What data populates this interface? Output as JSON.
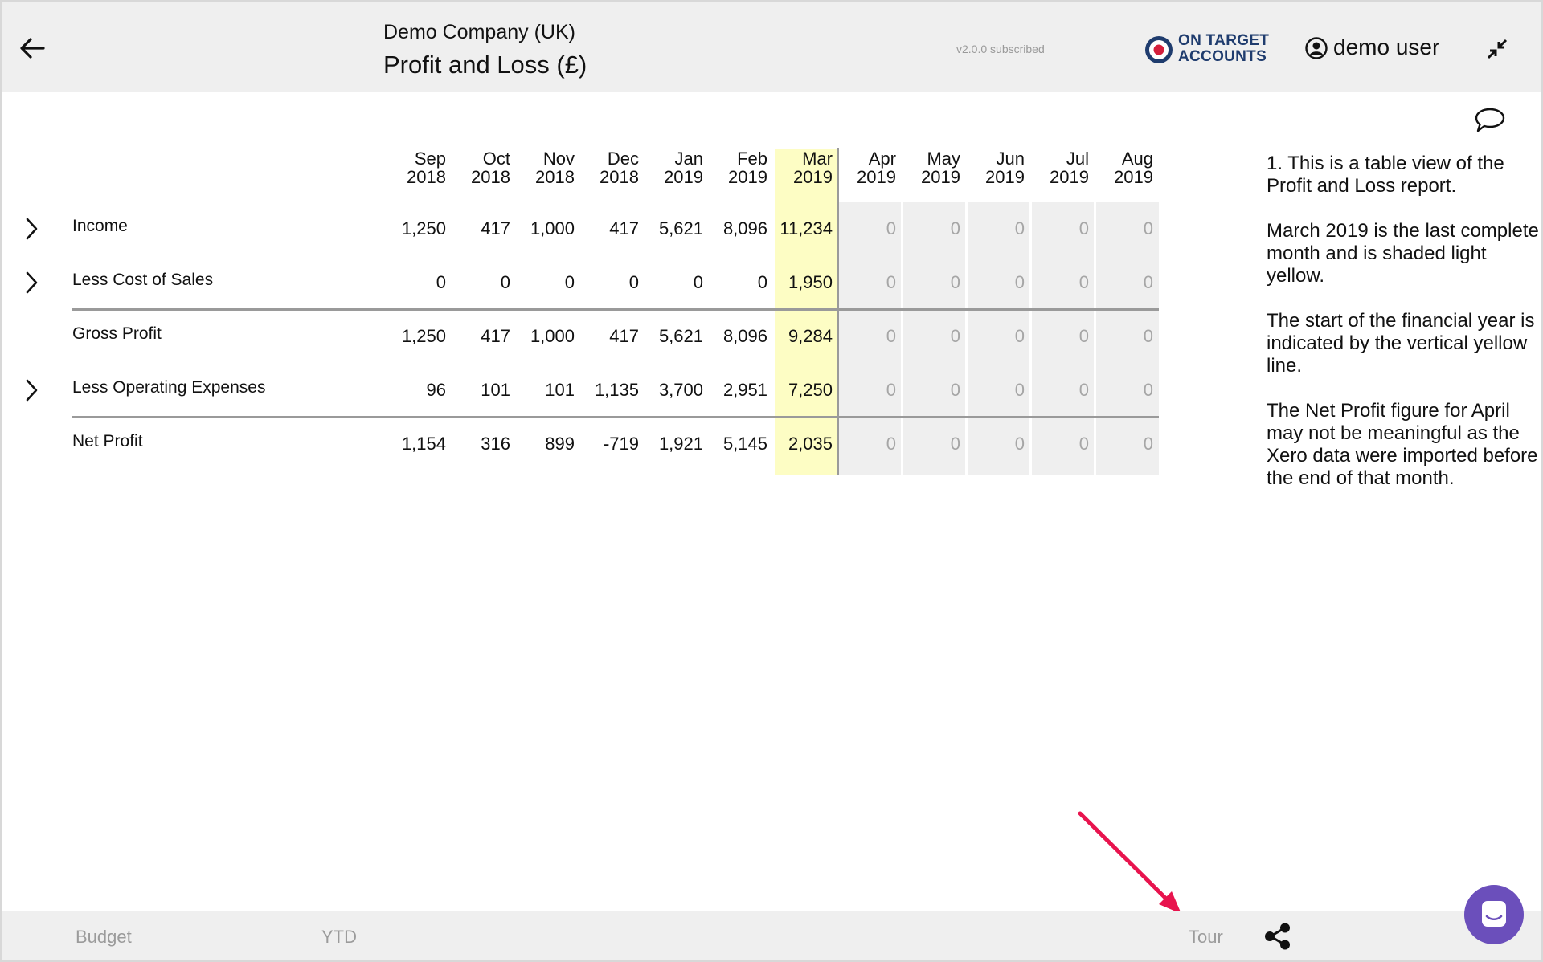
{
  "header": {
    "company": "Demo Company (UK)",
    "title": "Profit and Loss (£)",
    "version": "v2.0.0 subscribed",
    "brand": "ON TARGET\nACCOUNTS",
    "user": "demo user"
  },
  "table": {
    "columns": [
      "Sep\n2018",
      "Oct\n2018",
      "Nov\n2018",
      "Dec\n2018",
      "Jan\n2019",
      "Feb\n2019",
      "Mar\n2019",
      "Apr\n2019",
      "May\n2019",
      "Jun\n2019",
      "Jul\n2019",
      "Aug\n2019"
    ],
    "rows": [
      {
        "label": "Income",
        "values": [
          "1,250",
          "417",
          "1,000",
          "417",
          "5,621",
          "8,096",
          "11,234",
          "0",
          "0",
          "0",
          "0",
          "0"
        ]
      },
      {
        "label": "Less Cost of Sales",
        "values": [
          "0",
          "0",
          "0",
          "0",
          "0",
          "0",
          "1,950",
          "0",
          "0",
          "0",
          "0",
          "0"
        ]
      },
      {
        "label": "Gross Profit",
        "values": [
          "1,250",
          "417",
          "1,000",
          "417",
          "5,621",
          "8,096",
          "9,284",
          "0",
          "0",
          "0",
          "0",
          "0"
        ]
      },
      {
        "label": "Less Operating Expenses",
        "values": [
          "96",
          "101",
          "101",
          "1,135",
          "3,700",
          "2,951",
          "7,250",
          "0",
          "0",
          "0",
          "0",
          "0"
        ]
      },
      {
        "label": "Net Profit",
        "values": [
          "1,154",
          "316",
          "899",
          "-719",
          "1,921",
          "5,145",
          "2,035",
          "0",
          "0",
          "0",
          "0",
          "0"
        ]
      }
    ],
    "highlight_color": "#fdfdc4"
  },
  "notes": [
    "1. This is a table view of the Profit and Loss report.",
    "March 2019 is the last complete month and is shaded light yellow.",
    "The start of the financial year is indicated by the vertical yellow line.",
    "The Net Profit figure for April may not be meaningful as the Xero data were imported before the end of that month."
  ],
  "footer": {
    "budget": "Budget",
    "ytd": "YTD",
    "tour": "Tour"
  },
  "colors": {
    "brand": "#1f3c6e",
    "chat": "#6b4fbb",
    "arrow": "#e8144e"
  }
}
